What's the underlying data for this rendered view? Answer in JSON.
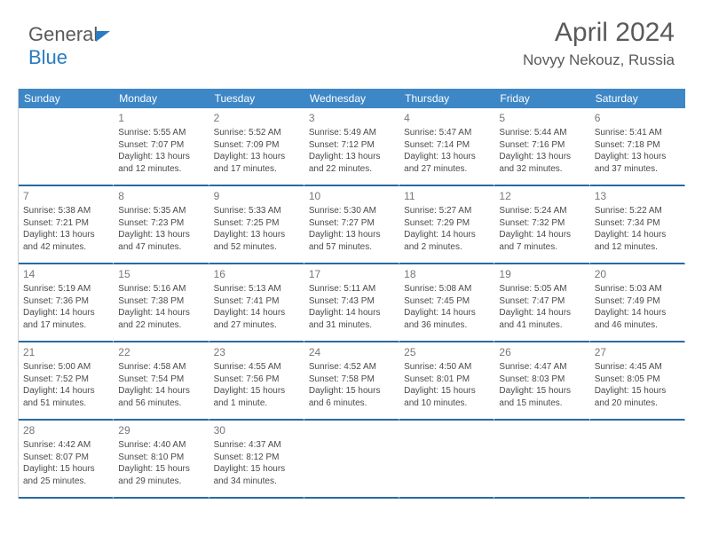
{
  "brand": {
    "part1": "General",
    "part2": "Blue"
  },
  "header": {
    "month": "April 2024",
    "location": "Novyy Nekouz, Russia"
  },
  "dayNames": [
    "Sunday",
    "Monday",
    "Tuesday",
    "Wednesday",
    "Thursday",
    "Friday",
    "Saturday"
  ],
  "colors": {
    "accent": "#3d87c7",
    "rule": "#2a6aa0",
    "text": "#4a4a4a"
  },
  "startOffset": 1,
  "days": [
    {
      "n": 1,
      "sr": "5:55 AM",
      "ss": "7:07 PM",
      "dl": "13 hours and 12 minutes."
    },
    {
      "n": 2,
      "sr": "5:52 AM",
      "ss": "7:09 PM",
      "dl": "13 hours and 17 minutes."
    },
    {
      "n": 3,
      "sr": "5:49 AM",
      "ss": "7:12 PM",
      "dl": "13 hours and 22 minutes."
    },
    {
      "n": 4,
      "sr": "5:47 AM",
      "ss": "7:14 PM",
      "dl": "13 hours and 27 minutes."
    },
    {
      "n": 5,
      "sr": "5:44 AM",
      "ss": "7:16 PM",
      "dl": "13 hours and 32 minutes."
    },
    {
      "n": 6,
      "sr": "5:41 AM",
      "ss": "7:18 PM",
      "dl": "13 hours and 37 minutes."
    },
    {
      "n": 7,
      "sr": "5:38 AM",
      "ss": "7:21 PM",
      "dl": "13 hours and 42 minutes."
    },
    {
      "n": 8,
      "sr": "5:35 AM",
      "ss": "7:23 PM",
      "dl": "13 hours and 47 minutes."
    },
    {
      "n": 9,
      "sr": "5:33 AM",
      "ss": "7:25 PM",
      "dl": "13 hours and 52 minutes."
    },
    {
      "n": 10,
      "sr": "5:30 AM",
      "ss": "7:27 PM",
      "dl": "13 hours and 57 minutes."
    },
    {
      "n": 11,
      "sr": "5:27 AM",
      "ss": "7:29 PM",
      "dl": "14 hours and 2 minutes."
    },
    {
      "n": 12,
      "sr": "5:24 AM",
      "ss": "7:32 PM",
      "dl": "14 hours and 7 minutes."
    },
    {
      "n": 13,
      "sr": "5:22 AM",
      "ss": "7:34 PM",
      "dl": "14 hours and 12 minutes."
    },
    {
      "n": 14,
      "sr": "5:19 AM",
      "ss": "7:36 PM",
      "dl": "14 hours and 17 minutes."
    },
    {
      "n": 15,
      "sr": "5:16 AM",
      "ss": "7:38 PM",
      "dl": "14 hours and 22 minutes."
    },
    {
      "n": 16,
      "sr": "5:13 AM",
      "ss": "7:41 PM",
      "dl": "14 hours and 27 minutes."
    },
    {
      "n": 17,
      "sr": "5:11 AM",
      "ss": "7:43 PM",
      "dl": "14 hours and 31 minutes."
    },
    {
      "n": 18,
      "sr": "5:08 AM",
      "ss": "7:45 PM",
      "dl": "14 hours and 36 minutes."
    },
    {
      "n": 19,
      "sr": "5:05 AM",
      "ss": "7:47 PM",
      "dl": "14 hours and 41 minutes."
    },
    {
      "n": 20,
      "sr": "5:03 AM",
      "ss": "7:49 PM",
      "dl": "14 hours and 46 minutes."
    },
    {
      "n": 21,
      "sr": "5:00 AM",
      "ss": "7:52 PM",
      "dl": "14 hours and 51 minutes."
    },
    {
      "n": 22,
      "sr": "4:58 AM",
      "ss": "7:54 PM",
      "dl": "14 hours and 56 minutes."
    },
    {
      "n": 23,
      "sr": "4:55 AM",
      "ss": "7:56 PM",
      "dl": "15 hours and 1 minute."
    },
    {
      "n": 24,
      "sr": "4:52 AM",
      "ss": "7:58 PM",
      "dl": "15 hours and 6 minutes."
    },
    {
      "n": 25,
      "sr": "4:50 AM",
      "ss": "8:01 PM",
      "dl": "15 hours and 10 minutes."
    },
    {
      "n": 26,
      "sr": "4:47 AM",
      "ss": "8:03 PM",
      "dl": "15 hours and 15 minutes."
    },
    {
      "n": 27,
      "sr": "4:45 AM",
      "ss": "8:05 PM",
      "dl": "15 hours and 20 minutes."
    },
    {
      "n": 28,
      "sr": "4:42 AM",
      "ss": "8:07 PM",
      "dl": "15 hours and 25 minutes."
    },
    {
      "n": 29,
      "sr": "4:40 AM",
      "ss": "8:10 PM",
      "dl": "15 hours and 29 minutes."
    },
    {
      "n": 30,
      "sr": "4:37 AM",
      "ss": "8:12 PM",
      "dl": "15 hours and 34 minutes."
    }
  ],
  "labels": {
    "sunrise": "Sunrise:",
    "sunset": "Sunset:",
    "daylight": "Daylight:"
  }
}
